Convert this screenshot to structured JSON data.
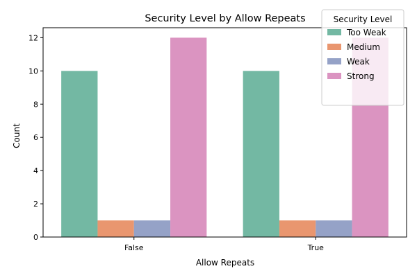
{
  "chart_data": {
    "type": "bar",
    "title": "Security Level by Allow Repeats",
    "xlabel": "Allow Repeats",
    "ylabel": "Count",
    "categories": [
      "False",
      "True"
    ],
    "ylim": [
      0,
      12.6
    ],
    "yticks": [
      0,
      2,
      4,
      6,
      8,
      10,
      12
    ],
    "legend_title": "Security Level",
    "legend_position": "top-right",
    "grid": false,
    "series": [
      {
        "name": "Too Weak",
        "color": "#73b8a3",
        "values": [
          10,
          10
        ]
      },
      {
        "name": "Medium",
        "color": "#e9966f",
        "values": [
          1,
          1
        ]
      },
      {
        "name": "Weak",
        "color": "#95a2c7",
        "values": [
          1,
          1
        ]
      },
      {
        "name": "Strong",
        "color": "#db94c1",
        "values": [
          12,
          12
        ]
      }
    ]
  }
}
